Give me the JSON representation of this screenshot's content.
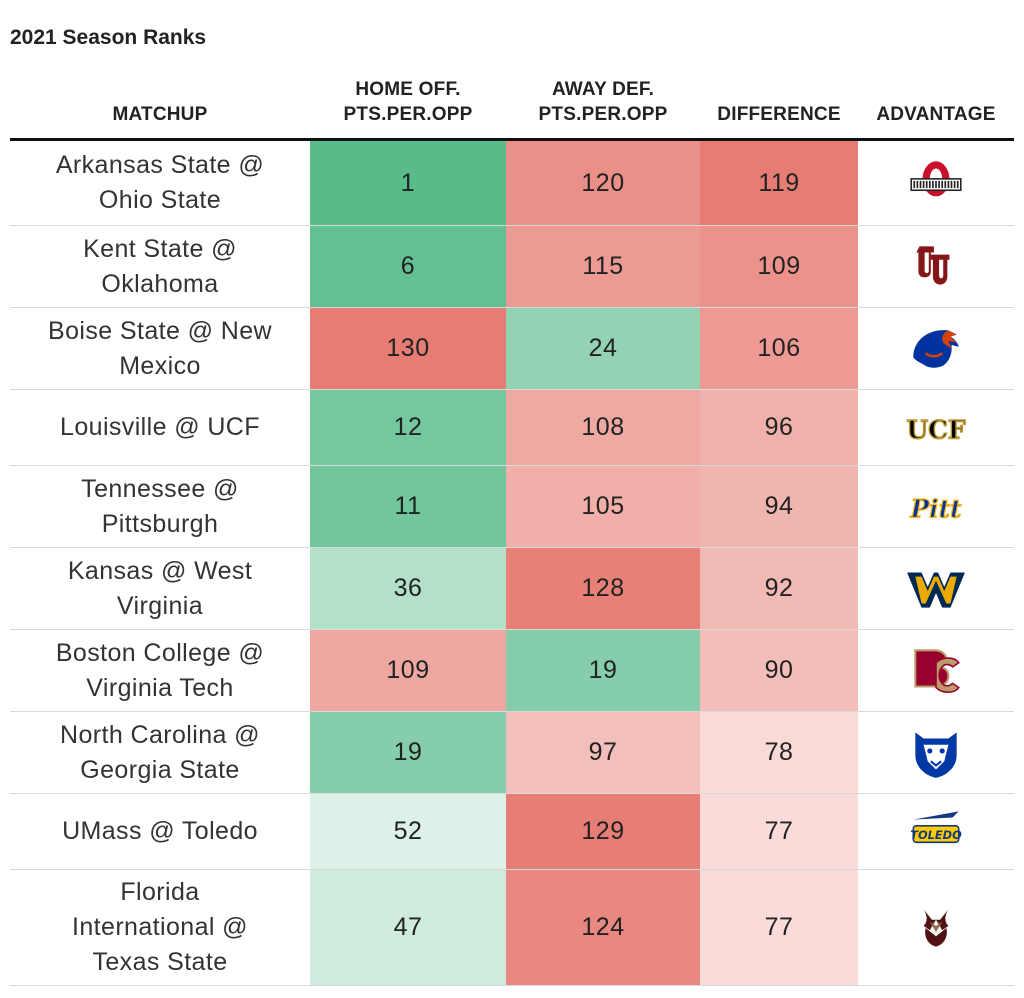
{
  "chart_data": {
    "type": "table",
    "title": "2021 Season Ranks",
    "columns": [
      [
        "MATCHUP"
      ],
      [
        "HOME OFF.",
        "PTS.PER.OPP"
      ],
      [
        "AWAY DEF.",
        "PTS.PER.OPP"
      ],
      [
        "DIFFERENCE"
      ],
      [
        "ADVANTAGE"
      ]
    ],
    "rows": [
      {
        "matchup": [
          "Arkansas State @",
          "Ohio State"
        ],
        "home_off": 1,
        "away_def": 120,
        "difference": 119,
        "advantage_icon": "ohio-state-logo-icon"
      },
      {
        "matchup": [
          "Kent State @",
          "Oklahoma"
        ],
        "home_off": 6,
        "away_def": 115,
        "difference": 109,
        "advantage_icon": "oklahoma-logo-icon"
      },
      {
        "matchup": [
          "Boise State @ New",
          "Mexico"
        ],
        "home_off": 130,
        "away_def": 24,
        "difference": 106,
        "advantage_icon": "boise-state-logo-icon"
      },
      {
        "matchup": [
          "Louisville @ UCF"
        ],
        "home_off": 12,
        "away_def": 108,
        "difference": 96,
        "advantage_icon": "ucf-logo-icon"
      },
      {
        "matchup": [
          "Tennessee @",
          "Pittsburgh"
        ],
        "home_off": 11,
        "away_def": 105,
        "difference": 94,
        "advantage_icon": "pitt-logo-icon"
      },
      {
        "matchup": [
          "Kansas @ West",
          "Virginia"
        ],
        "home_off": 36,
        "away_def": 128,
        "difference": 92,
        "advantage_icon": "west-virginia-logo-icon"
      },
      {
        "matchup": [
          "Boston College @",
          "Virginia Tech"
        ],
        "home_off": 109,
        "away_def": 19,
        "difference": 90,
        "advantage_icon": "boston-college-logo-icon"
      },
      {
        "matchup": [
          "North Carolina @",
          "Georgia State"
        ],
        "home_off": 19,
        "away_def": 97,
        "difference": 78,
        "advantage_icon": "georgia-state-logo-icon"
      },
      {
        "matchup": [
          "UMass @ Toledo"
        ],
        "home_off": 52,
        "away_def": 129,
        "difference": 77,
        "advantage_icon": "toledo-logo-icon"
      },
      {
        "matchup": [
          "Florida",
          "International @",
          "Texas State"
        ],
        "home_off": 47,
        "away_def": 124,
        "difference": 77,
        "advantage_icon": "texas-state-logo-icon"
      }
    ],
    "colors": {
      "rank_best": "#57bb8a",
      "neutral": "#ffffff",
      "rank_worst": "#e67c73",
      "difference_low": "#f9dcd9",
      "difference_high": "#e67c73"
    },
    "rank_range": [
      1,
      130
    ],
    "difference_range": [
      77,
      119
    ]
  }
}
